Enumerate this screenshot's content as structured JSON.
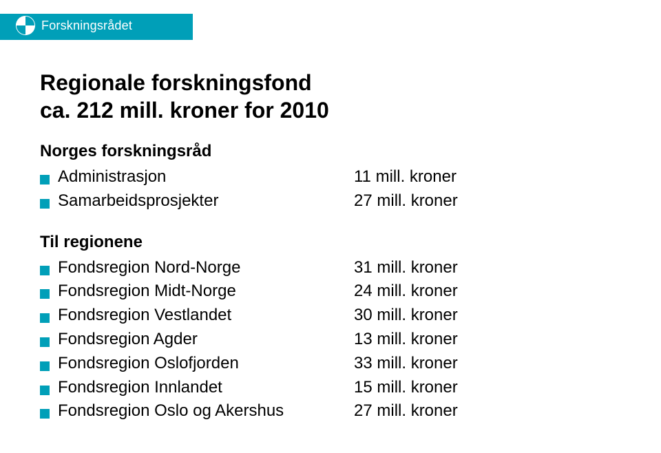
{
  "brand": {
    "name": "Forskningsrådet"
  },
  "colors": {
    "accent": "#009fb8",
    "text": "#000000",
    "background": "#ffffff"
  },
  "title_line1": "Regionale forskningsfond",
  "title_line2": "ca. 212 mill. kroner for 2010",
  "sections": [
    {
      "heading": "Norges forskningsråd",
      "rows": [
        {
          "label": "Administrasjon",
          "value": "11 mill. kroner"
        },
        {
          "label": "Samarbeidsprosjekter",
          "value": "27 mill. kroner"
        }
      ]
    },
    {
      "heading": "Til regionene",
      "rows": [
        {
          "label": "Fondsregion Nord-Norge",
          "value": "31 mill. kroner"
        },
        {
          "label": "Fondsregion Midt-Norge",
          "value": "24 mill. kroner"
        },
        {
          "label": "Fondsregion Vestlandet",
          "value": "30 mill. kroner"
        },
        {
          "label": "Fondsregion Agder",
          "value": "13 mill. kroner"
        },
        {
          "label": "Fondsregion Oslofjorden",
          "value": "33 mill. kroner"
        },
        {
          "label": "Fondsregion Innlandet",
          "value": "15 mill. kroner"
        },
        {
          "label": "Fondsregion Oslo og Akershus",
          "value": "27 mill. kroner"
        }
      ]
    }
  ]
}
